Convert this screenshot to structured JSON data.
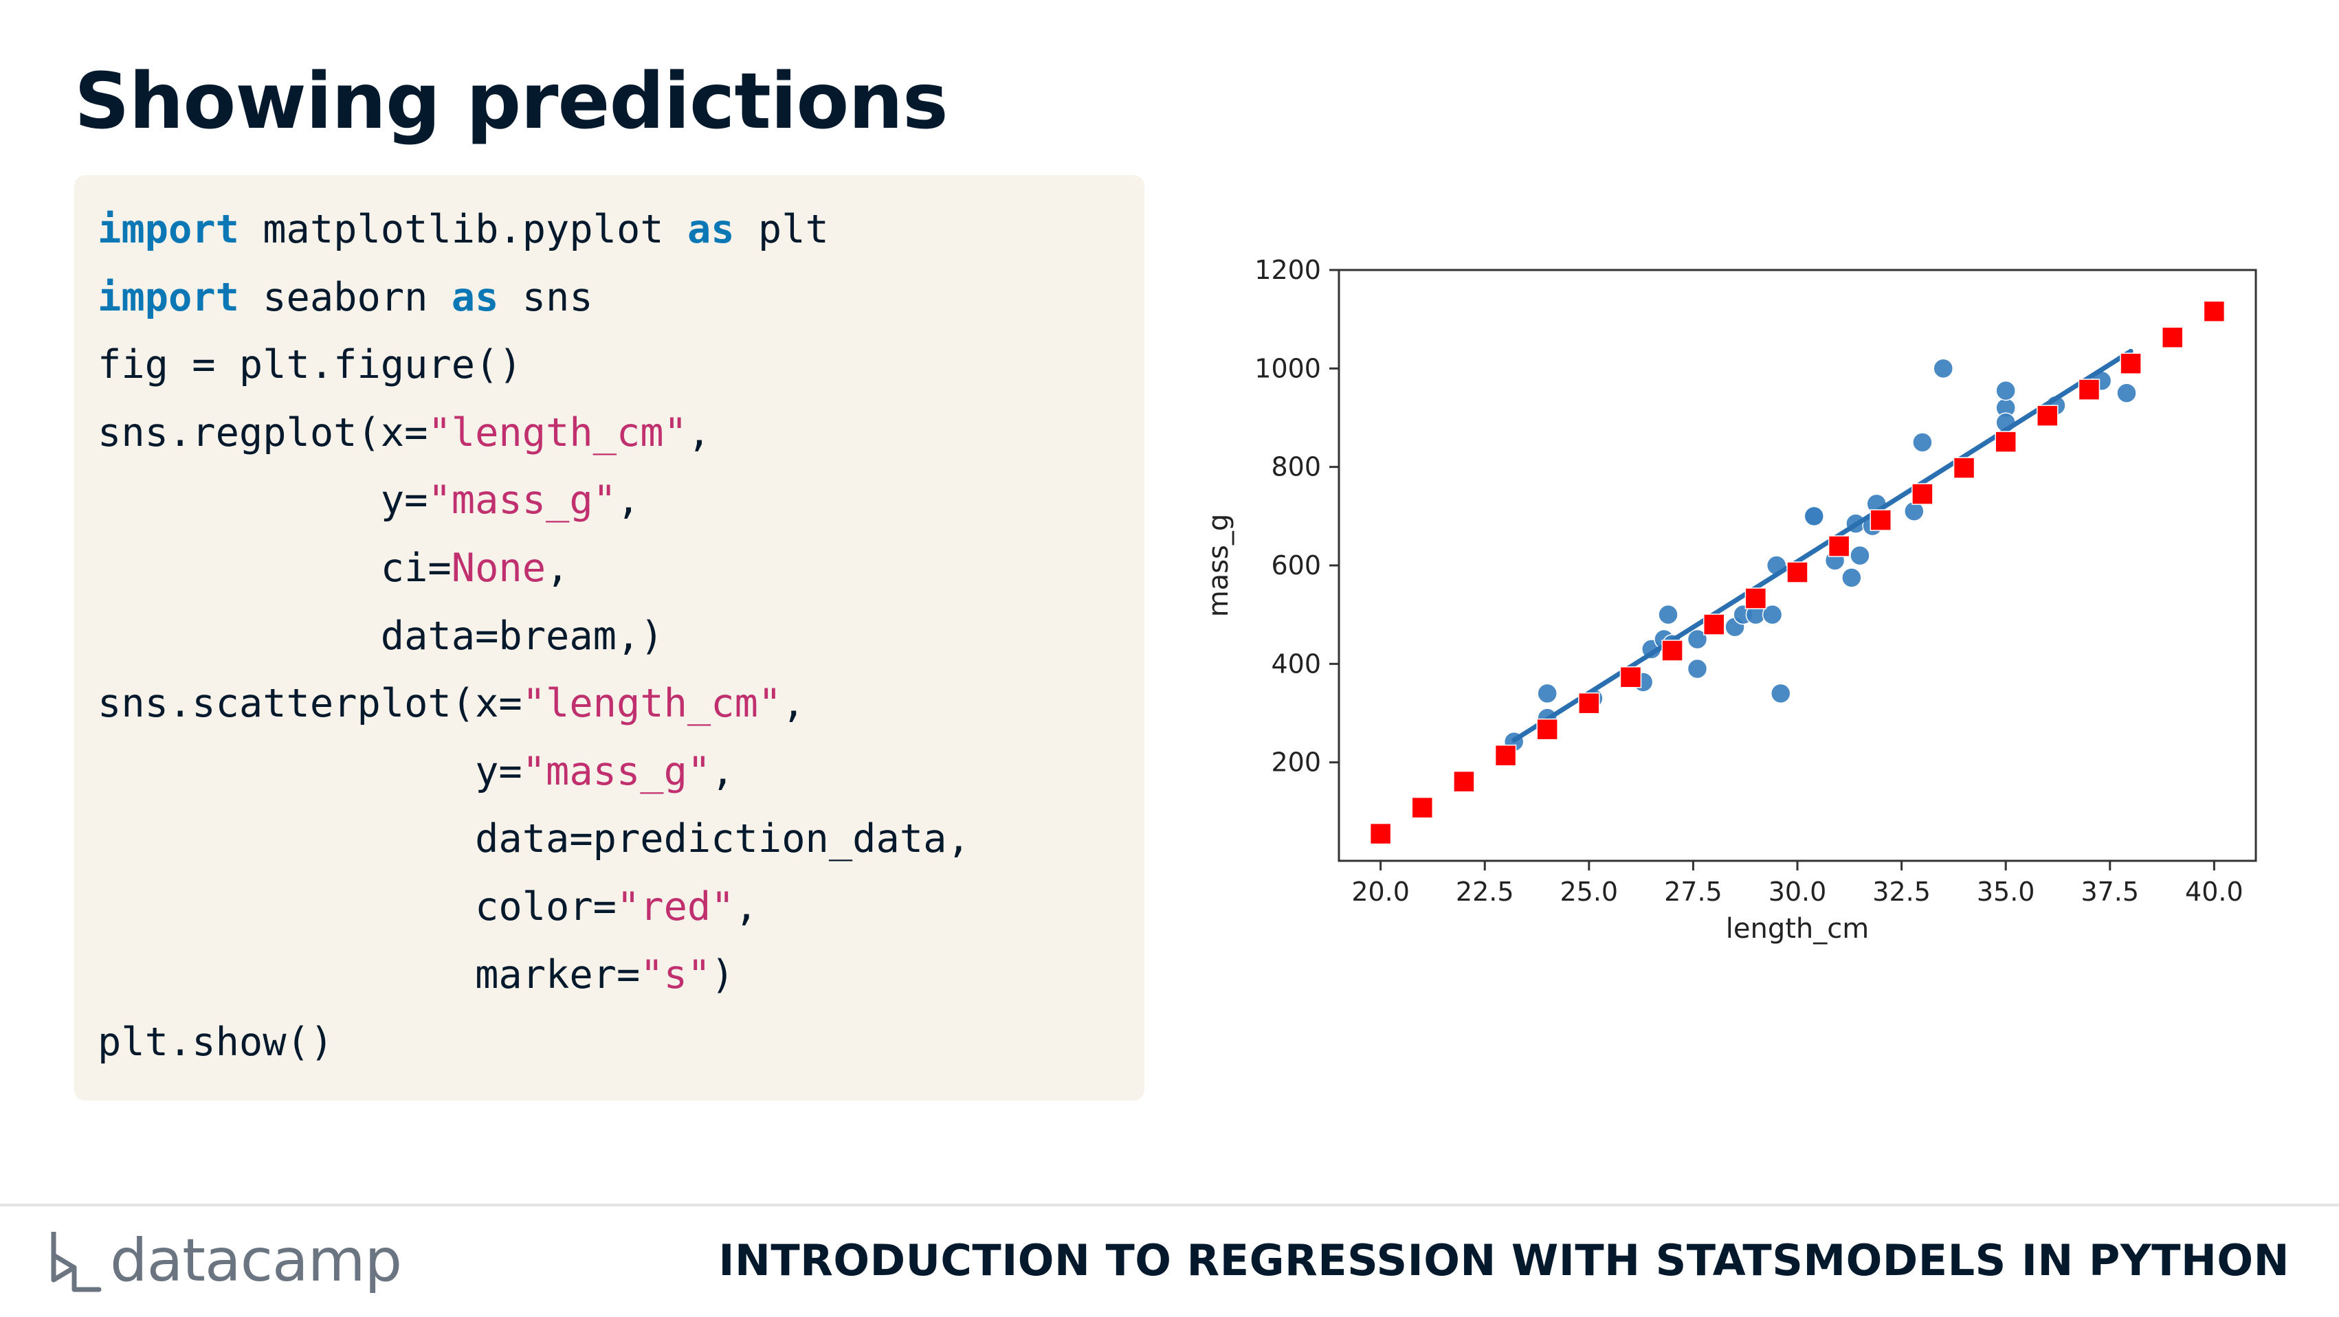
{
  "slide": {
    "title": "Showing predictions"
  },
  "code": {
    "lines": [
      [
        {
          "t": "import",
          "c": "kw"
        },
        {
          "t": " matplotlib.pyplot ",
          "c": ""
        },
        {
          "t": "as",
          "c": "kw"
        },
        {
          "t": " plt",
          "c": ""
        }
      ],
      [
        {
          "t": "import",
          "c": "kw"
        },
        {
          "t": " seaborn ",
          "c": ""
        },
        {
          "t": "as",
          "c": "kw"
        },
        {
          "t": " sns",
          "c": ""
        }
      ],
      [
        {
          "t": "fig = plt.figure()",
          "c": ""
        }
      ],
      [
        {
          "t": "sns.regplot(x=",
          "c": ""
        },
        {
          "t": "\"length_cm\"",
          "c": "str"
        },
        {
          "t": ",",
          "c": ""
        }
      ],
      [
        {
          "t": "            y=",
          "c": ""
        },
        {
          "t": "\"mass_g\"",
          "c": "str"
        },
        {
          "t": ",",
          "c": ""
        }
      ],
      [
        {
          "t": "            ci=",
          "c": ""
        },
        {
          "t": "None",
          "c": "str"
        },
        {
          "t": ",",
          "c": ""
        }
      ],
      [
        {
          "t": "            data=bream,)",
          "c": ""
        }
      ],
      [
        {
          "t": "sns.scatterplot(x=",
          "c": ""
        },
        {
          "t": "\"length_cm\"",
          "c": "str"
        },
        {
          "t": ",",
          "c": ""
        }
      ],
      [
        {
          "t": "                y=",
          "c": ""
        },
        {
          "t": "\"mass_g\"",
          "c": "str"
        },
        {
          "t": ",",
          "c": ""
        }
      ],
      [
        {
          "t": "                data=prediction_data,",
          "c": ""
        }
      ],
      [
        {
          "t": "                color=",
          "c": ""
        },
        {
          "t": "\"red\"",
          "c": "str"
        },
        {
          "t": ",",
          "c": ""
        }
      ],
      [
        {
          "t": "                marker=",
          "c": ""
        },
        {
          "t": "\"s\"",
          "c": "str"
        },
        {
          "t": ")",
          "c": ""
        }
      ],
      [
        {
          "t": "plt.show()",
          "c": ""
        }
      ]
    ]
  },
  "chart_data": {
    "type": "scatter",
    "xlabel": "length_cm",
    "ylabel": "mass_g",
    "xlim": [
      19.0,
      41.0
    ],
    "ylim": [
      0,
      1200
    ],
    "xticks": [
      "20.0",
      "22.5",
      "25.0",
      "27.5",
      "30.0",
      "32.5",
      "35.0",
      "37.5",
      "40.0"
    ],
    "yticks": [
      "200",
      "400",
      "600",
      "800",
      "1000",
      "1200"
    ],
    "grid": false,
    "colors": {
      "observed": "#3a7fbf",
      "regression_line": "#2a6fb0",
      "predicted": "#ff0000",
      "axes": "#333333"
    },
    "regression_line": {
      "x": [
        23.2,
        38.0
      ],
      "y": [
        245,
        1035
      ]
    },
    "series": [
      {
        "marker": "circle",
        "x": [
          23.2,
          24.0,
          24.0,
          25.0,
          25.1,
          26.3,
          26.5,
          26.8,
          26.9,
          27.0,
          27.6,
          27.6,
          28.5,
          28.7,
          29.0,
          29.4,
          29.6,
          29.5,
          30.4,
          30.4,
          30.9,
          31.3,
          31.4,
          31.5,
          31.8,
          31.9,
          32.8,
          33.0,
          33.5,
          35.0,
          35.0,
          35.0,
          36.2,
          37.3,
          37.9
        ],
        "y": [
          242,
          290,
          340,
          320,
          330,
          363,
          430,
          450,
          500,
          440,
          390,
          450,
          475,
          500,
          500,
          500,
          340,
          600,
          700,
          700,
          610,
          575,
          685,
          620,
          680,
          725,
          710,
          850,
          1000,
          920,
          955,
          890,
          925,
          975,
          950
        ]
      },
      {
        "marker": "square",
        "x": [
          20,
          21,
          22,
          23,
          24,
          25,
          26,
          27,
          28,
          29,
          30,
          31,
          32,
          33,
          34,
          35,
          36,
          37,
          38,
          39,
          40
        ],
        "y": [
          55,
          108,
          161,
          214,
          267,
          320,
          373,
          427,
          480,
          533,
          586,
          639,
          692,
          745,
          798,
          851,
          904,
          957,
          1010,
          1063,
          1116
        ]
      }
    ]
  },
  "footer": {
    "brand": "datacamp",
    "course_title": "INTRODUCTION TO REGRESSION WITH STATSMODELS IN PYTHON"
  }
}
